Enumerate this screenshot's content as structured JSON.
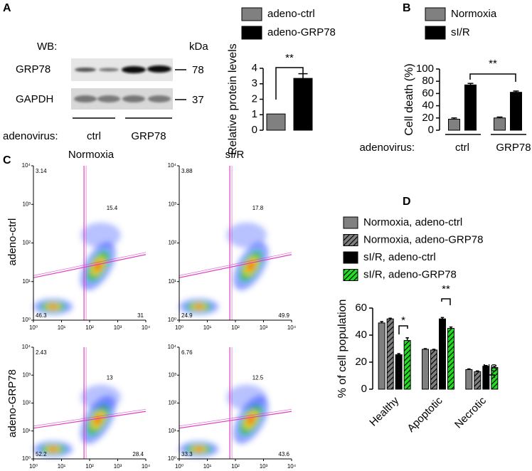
{
  "panel_labels": [
    "A",
    "B",
    "C",
    "D"
  ],
  "western_blot": {
    "label": "WB:",
    "unit": "kDa",
    "rows": [
      {
        "name": "GRP78",
        "kda": 78
      },
      {
        "name": "GAPDH",
        "kda": 37
      }
    ],
    "row_label": "adenovirus:",
    "groups": [
      "ctrl",
      "GRP78"
    ]
  },
  "chart_data": [
    {
      "type": "bar",
      "ylabel": "Relative protein levels",
      "categories": [
        null
      ],
      "series": [
        {
          "name": "adeno-ctrl",
          "color": "#808080",
          "values": [
            1.05
          ]
        },
        {
          "name": "adeno-GRP78",
          "color": "#000000",
          "values": [
            3.35
          ],
          "errors": [
            0.3
          ]
        }
      ],
      "ylim": [
        0,
        4
      ],
      "yticks": [
        0,
        1,
        2,
        3,
        4
      ],
      "annotations": [
        "**"
      ],
      "legend": "top"
    },
    {
      "type": "bar",
      "ylabel": "Cell death (%)",
      "xlabel": "adenovirus:",
      "categories": [
        "ctrl",
        "GRP78"
      ],
      "series": [
        {
          "name": "Normoxia",
          "color": "#808080",
          "values": [
            18,
            20
          ],
          "errors": [
            2,
            1.5
          ]
        },
        {
          "name": "sI/R",
          "color": "#000000",
          "values": [
            74,
            62
          ],
          "errors": [
            2.5,
            2
          ]
        }
      ],
      "ylim": [
        0,
        100
      ],
      "yticks": [
        0,
        20,
        40,
        60,
        80,
        100
      ],
      "annotations": [
        "**"
      ],
      "legend": "top"
    },
    {
      "type": "bar",
      "ylabel": "% of cell population",
      "categories": [
        "Healthy",
        "Apoptotic",
        "Necrotic"
      ],
      "series": [
        {
          "name": "Normoxia, adeno-ctrl",
          "color": "#808080",
          "values": [
            49,
            29.5,
            14.5
          ],
          "errors": [
            1,
            0.5,
            0.5
          ]
        },
        {
          "name": "Normoxia, adeno-GRP78",
          "color": "#808080",
          "hatch": true,
          "values": [
            52,
            29,
            13
          ],
          "errors": [
            0.5,
            0.5,
            0.5
          ]
        },
        {
          "name": "sI/R, adeno-ctrl",
          "color": "#000000",
          "values": [
            25.5,
            52,
            17
          ],
          "errors": [
            0.8,
            1,
            0.5
          ]
        },
        {
          "name": "sI/R, adeno-GRP78",
          "color": "#22dd22",
          "hatch": true,
          "values": [
            36,
            45,
            16
          ],
          "errors": [
            2,
            1,
            1
          ]
        }
      ],
      "ylim": [
        0,
        60
      ],
      "yticks": [
        0,
        20,
        40,
        60
      ],
      "annotations": [
        "*",
        "**",
        "NS"
      ],
      "legend": "top"
    }
  ],
  "flow_cytometry": {
    "columns": [
      "Normoxia",
      "sI/R"
    ],
    "rows": [
      "adeno-ctrl",
      "adeno-GRP78"
    ],
    "log": true,
    "xticks": [
      {
        "value": 1,
        "label": "10⁰"
      },
      {
        "value": 10,
        "label": "10¹"
      },
      {
        "value": 100,
        "label": "10²"
      },
      {
        "value": 1000,
        "label": "10³"
      },
      {
        "value": 10000,
        "label": "10⁴"
      }
    ],
    "yticks": [
      {
        "value": 1,
        "label": "10⁰"
      },
      {
        "value": 10,
        "label": "10¹"
      },
      {
        "value": 100,
        "label": "10²"
      },
      {
        "value": 1000,
        "label": "10³"
      },
      {
        "value": 10000,
        "label": "10⁴"
      }
    ],
    "plots": [
      {
        "upper_left": 3.14,
        "upper_right": 15.4,
        "lower_left": 46.3,
        "lower_right": 31
      },
      {
        "upper_left": 3.88,
        "upper_right": 17.8,
        "lower_left": 24.9,
        "lower_right": 49.9
      },
      {
        "upper_left": 2.43,
        "upper_right": 13,
        "lower_left": 52.2,
        "lower_right": 28.4
      },
      {
        "upper_left": 6.76,
        "upper_right": 12.5,
        "lower_left": 33.3,
        "lower_right": 43.6
      }
    ]
  }
}
